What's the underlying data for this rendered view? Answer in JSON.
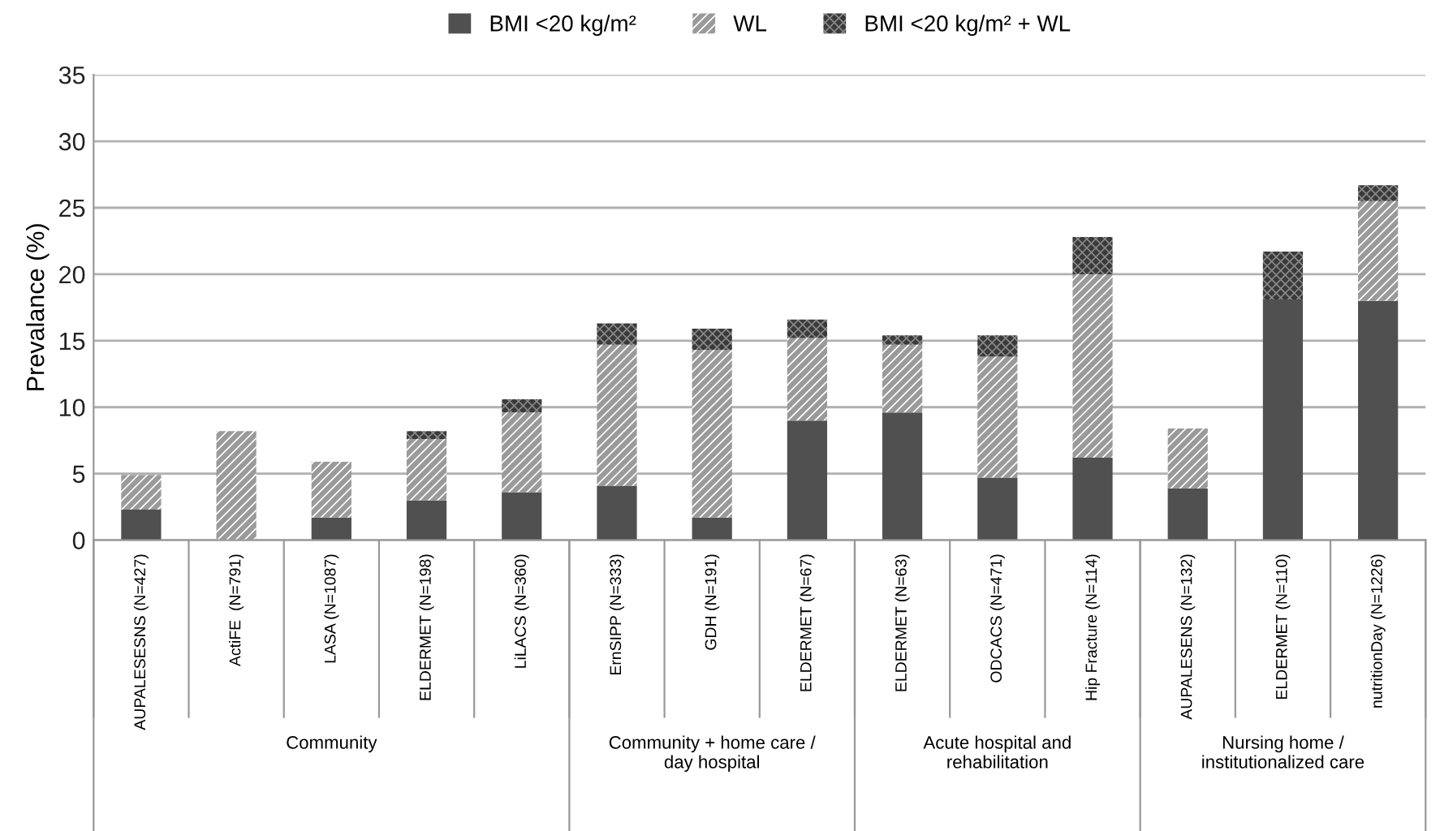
{
  "chart_data": {
    "type": "bar",
    "stacked": true,
    "ylabel": "Prevalance (%)",
    "categories": [
      "AUPALESESNS (N=427)",
      "ActiFE  (N=791)",
      "LASA (N=1087)",
      "ELDERMET (N=198)",
      "LiLACS (N=360)",
      "ErnSIPP (N=333)",
      "GDH (N=191)",
      "ELDERMET (N=67)",
      "ELDERMET (N=63)",
      "ODCACS (N=471)",
      "Hip Fracture (N=114)",
      "AUPALESENS (N=132)",
      "ELDERMET (N=110)",
      "nutritionDay (N=1226)"
    ],
    "series": [
      {
        "name": "BMI <20 kg/m²",
        "color": "#505050",
        "values": [
          2.3,
          0,
          1.7,
          3.0,
          3.6,
          4.1,
          1.7,
          9.0,
          9.6,
          4.7,
          6.2,
          3.9,
          18.1,
          18.0
        ]
      },
      {
        "name": "WL",
        "color": "#9a9a9a",
        "values": [
          2.6,
          8.2,
          4.2,
          4.6,
          6.0,
          10.6,
          12.6,
          6.2,
          5.1,
          9.1,
          13.8,
          4.5,
          0,
          7.5
        ]
      },
      {
        "name": "BMI <20 kg/m² + WL",
        "color": "#3a3a3a",
        "values": [
          0,
          0,
          0,
          0.6,
          1.0,
          1.6,
          1.6,
          1.4,
          0.7,
          1.6,
          2.8,
          0,
          3.6,
          1.2
        ]
      }
    ],
    "ylim": [
      0,
      35
    ],
    "yticks": [
      0,
      5,
      10,
      15,
      20,
      25,
      30,
      35
    ],
    "grid": "y",
    "legend": "top",
    "annotations": [
      "Community",
      "Community + home care /\nday hospital",
      "Acute hospital and\nrehabilitation",
      "Nursing home /\ninstitutionalized care"
    ]
  }
}
